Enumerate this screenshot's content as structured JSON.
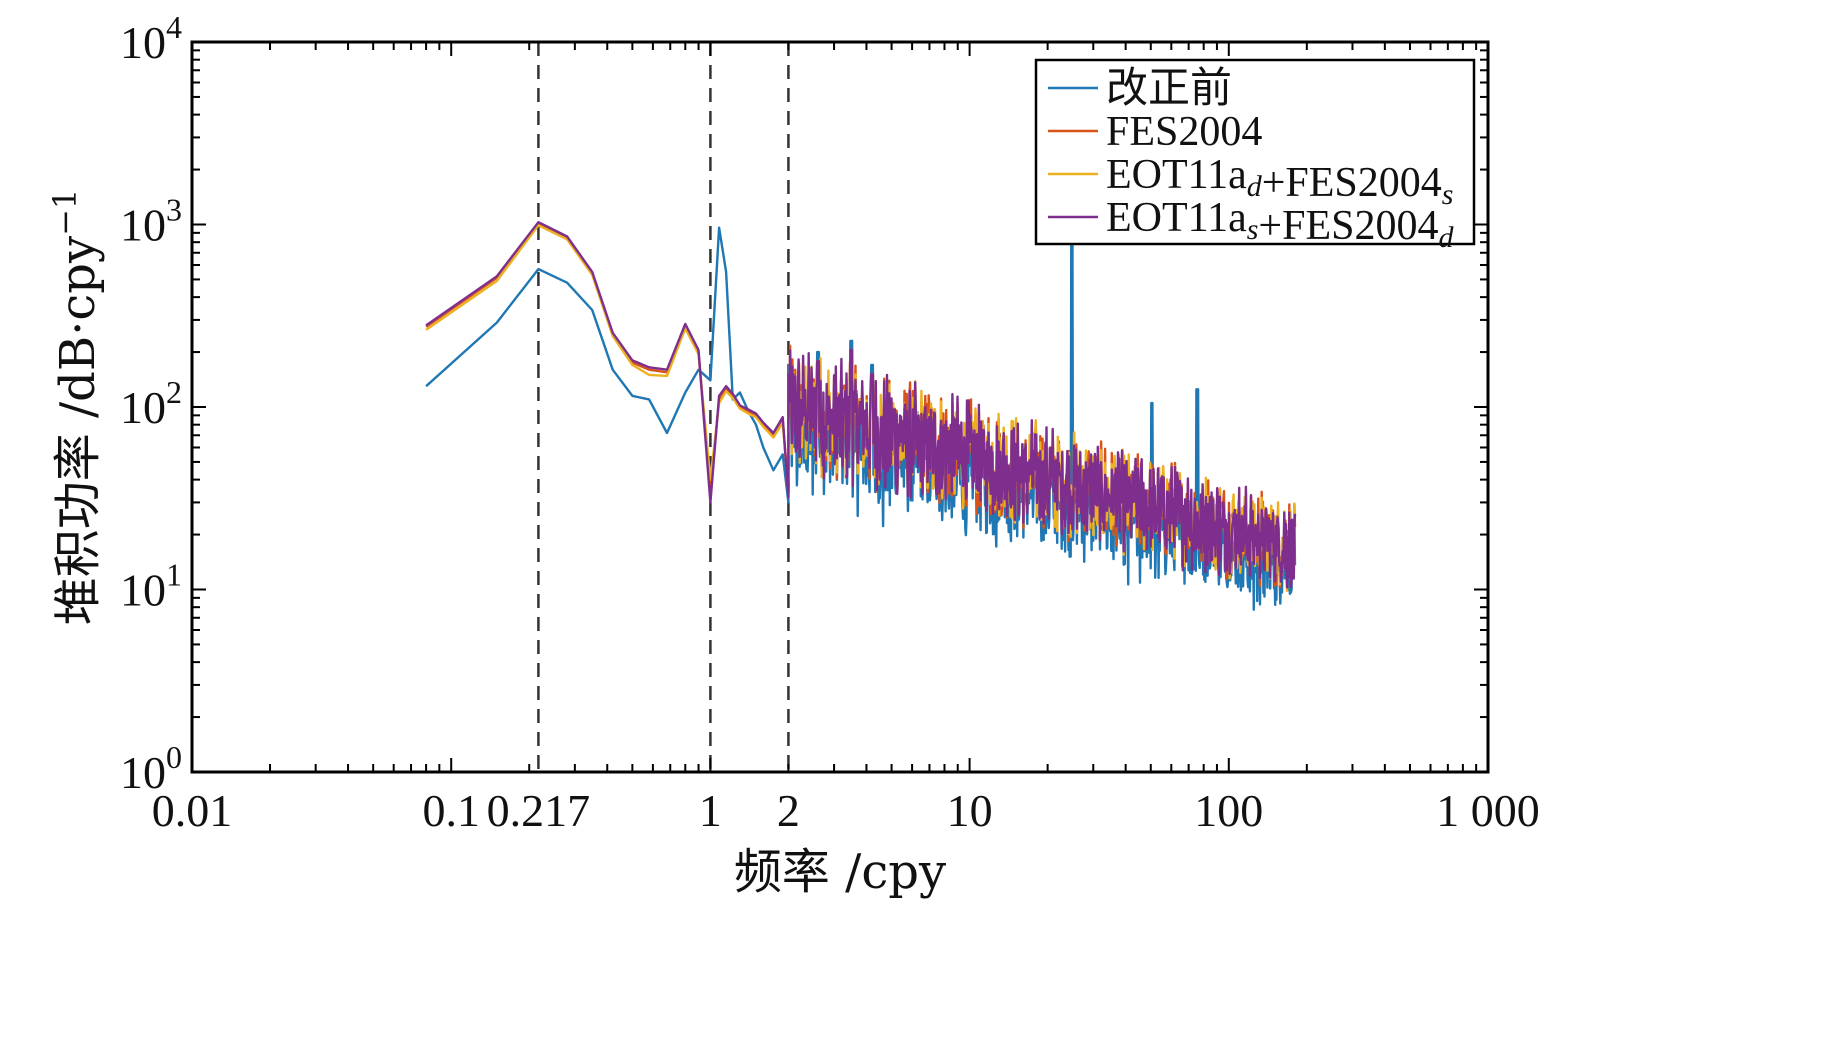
{
  "chart_data": {
    "type": "line",
    "xscale": "log",
    "yscale": "log",
    "xlim": [
      0.01,
      1000
    ],
    "ylim": [
      1,
      10000
    ],
    "xlabel": "频率 /cpy",
    "ylabel": "堆积功率 /dB·cpy",
    "ylabel_sup": "−1",
    "x_ticks": [
      {
        "value": 0.01,
        "label": "0.01"
      },
      {
        "value": 0.1,
        "label": "0.1"
      },
      {
        "value": 0.217,
        "label": "0.217"
      },
      {
        "value": 1,
        "label": "1"
      },
      {
        "value": 2,
        "label": "2"
      },
      {
        "value": 10,
        "label": "10"
      },
      {
        "value": 100,
        "label": "100"
      },
      {
        "value": 1000,
        "label": "1 000"
      }
    ],
    "y_ticks": [
      {
        "value": 1,
        "base": "10",
        "exp": "0"
      },
      {
        "value": 10,
        "base": "10",
        "exp": "1"
      },
      {
        "value": 100,
        "base": "10",
        "exp": "2"
      },
      {
        "value": 1000,
        "base": "10",
        "exp": "3"
      },
      {
        "value": 10000,
        "base": "10",
        "exp": "4"
      }
    ],
    "reference_lines_x": [
      0.217,
      1,
      2
    ],
    "legend_position": "top-right",
    "series": [
      {
        "name": "改正前",
        "legend_parts": [
          {
            "t": "改正前"
          }
        ],
        "color": "#1f77b4",
        "x": [
          0.08,
          0.15,
          0.217,
          0.28,
          0.35,
          0.42,
          0.5,
          0.58,
          0.68,
          0.8,
          0.9,
          1.0,
          1.08,
          1.15,
          1.22,
          1.3,
          1.4,
          1.5,
          1.6,
          1.75,
          1.9,
          2.0
        ],
        "y": [
          130,
          290,
          570,
          480,
          340,
          160,
          115,
          110,
          72,
          120,
          160,
          140,
          960,
          550,
          110,
          120,
          95,
          80,
          60,
          45,
          55,
          30
        ]
      },
      {
        "name": "FES2004",
        "legend_parts": [
          {
            "t": "FES2004"
          }
        ],
        "color": "#d95319",
        "x": [
          0.08,
          0.15,
          0.217,
          0.28,
          0.35,
          0.42,
          0.5,
          0.58,
          0.68,
          0.8,
          0.9,
          1.0,
          1.08,
          1.15,
          1.22,
          1.3,
          1.4,
          1.5,
          1.6,
          1.75,
          1.9,
          2.0
        ],
        "y": [
          275,
          510,
          1020,
          850,
          540,
          250,
          175,
          160,
          155,
          280,
          200,
          35,
          110,
          125,
          115,
          100,
          95,
          90,
          80,
          70,
          85,
          35
        ]
      },
      {
        "name": "EOT11a_d+FES2004_s",
        "legend_parts": [
          {
            "t": "EOT11a"
          },
          {
            "t": "d",
            "sub": true
          },
          {
            "t": "+FES2004"
          },
          {
            "t": "s",
            "sub": true
          }
        ],
        "color": "#edb120",
        "x": [
          0.08,
          0.15,
          0.217,
          0.28,
          0.35,
          0.42,
          0.5,
          0.58,
          0.68,
          0.8,
          0.9,
          1.0,
          1.08,
          1.15,
          1.22,
          1.3,
          1.4,
          1.5,
          1.6,
          1.75,
          1.9,
          2.0
        ],
        "y": [
          265,
          490,
          990,
          830,
          530,
          245,
          170,
          150,
          148,
          270,
          195,
          40,
          105,
          122,
          112,
          98,
          92,
          88,
          78,
          68,
          82,
          34
        ]
      },
      {
        "name": "EOT11a_s+FES2004_d",
        "legend_parts": [
          {
            "t": "EOT11a"
          },
          {
            "t": "s",
            "sub": true
          },
          {
            "t": "+FES2004"
          },
          {
            "t": "d",
            "sub": true
          }
        ],
        "color": "#7e2f8e",
        "x": [
          0.08,
          0.15,
          0.217,
          0.28,
          0.35,
          0.42,
          0.5,
          0.58,
          0.68,
          0.8,
          0.9,
          1.0,
          1.08,
          1.15,
          1.22,
          1.3,
          1.4,
          1.5,
          1.6,
          1.75,
          1.9,
          2.0
        ],
        "y": [
          280,
          520,
          1030,
          860,
          550,
          255,
          180,
          165,
          160,
          285,
          205,
          30,
          115,
          130,
          118,
          102,
          97,
          92,
          82,
          72,
          88,
          32
        ]
      }
    ],
    "noise_band": {
      "x_range": [
        2,
        180
      ],
      "description_values": {
        "start_level": 100,
        "end_level": 17,
        "spikes": [
          {
            "x": 2.0,
            "y": 170
          },
          {
            "x": 2.6,
            "y": 200
          },
          {
            "x": 3.5,
            "y": 230
          },
          {
            "x": 4.2,
            "y": 170
          },
          {
            "x": 24.8,
            "y": 1000
          },
          {
            "x": 50.5,
            "y": 105
          },
          {
            "x": 75.5,
            "y": 125
          }
        ]
      }
    }
  }
}
